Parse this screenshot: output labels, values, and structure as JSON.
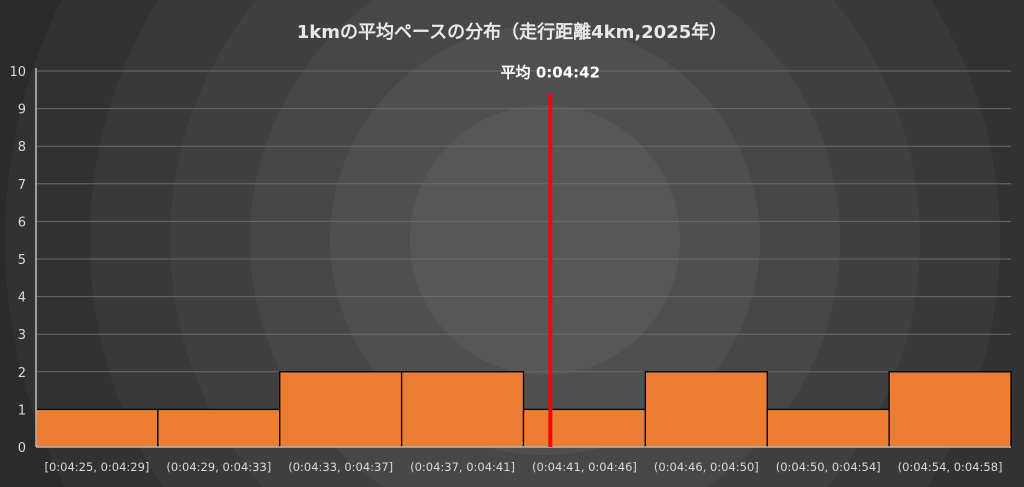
{
  "chart_data": {
    "type": "bar",
    "title": "1kmの平均ペースの分布（走行距離4km,2025年）",
    "categories": [
      "[0:04:25, 0:04:29]",
      "(0:04:29, 0:04:33]",
      "(0:04:33, 0:04:37]",
      "(0:04:37, 0:04:41]",
      "(0:04:41, 0:04:46]",
      "(0:04:46, 0:04:50]",
      "(0:04:50, 0:04:54]",
      "(0:04:54, 0:04:58]"
    ],
    "values": [
      1,
      1,
      2,
      2,
      1,
      2,
      1,
      2
    ],
    "ylim": [
      0,
      10
    ],
    "yticks": [
      "0",
      "1",
      "2",
      "3",
      "4",
      "5",
      "6",
      "7",
      "8",
      "9",
      "10"
    ],
    "gridlines": true,
    "average_line": {
      "label": "平均 0:04:42",
      "bin_index": 4,
      "bin_fraction": 0.22,
      "height": 9.4,
      "color": "#ff0000"
    },
    "bar_color": "#ed7d31",
    "bar_edge_color": "#000000",
    "axis_color": "#bfbfbf",
    "grid_color": "#6a6a6a"
  }
}
